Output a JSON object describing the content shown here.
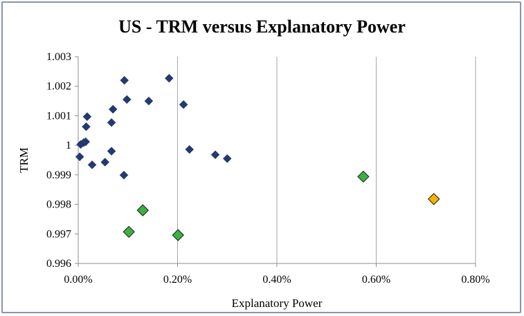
{
  "chart_data": {
    "type": "scatter",
    "title": "US - TRM versus Explanatory  Power",
    "xlabel": "Explanatory Power",
    "ylabel": "TRM",
    "xlim": [
      0,
      0.008
    ],
    "ylim": [
      0.996,
      1.003
    ],
    "x_ticks": [
      0,
      0.002,
      0.004,
      0.006,
      0.008
    ],
    "x_tick_labels": [
      "0.00%",
      "0.20%",
      "0.40%",
      "0.60%",
      "0.80%"
    ],
    "y_ticks": [
      0.996,
      0.997,
      0.998,
      0.999,
      1,
      1.001,
      1.002,
      1.003
    ],
    "y_tick_labels": [
      "0.996",
      "0.997",
      "0.998",
      "0.999",
      "1",
      "1.001",
      "1.002",
      "1.003"
    ],
    "grid": "vertical",
    "legend": "none",
    "series": [
      {
        "color": "#243a6e",
        "marker": "diamond-small",
        "points": [
          [
            0.00093,
            1.0022
          ],
          [
            0.00183,
            1.00227
          ],
          [
            0.00098,
            1.00155
          ],
          [
            0.00142,
            1.0015
          ],
          [
            0.00212,
            1.00138
          ],
          [
            0.0007,
            1.00122
          ],
          [
            0.00018,
            1.00097
          ],
          [
            0.00067,
            1.00077
          ],
          [
            0.00016,
            1.00063
          ],
          [
            5e-05,
            1.00003
          ],
          [
            0.00011,
            1.00009
          ],
          [
            0.00015,
            1.00012
          ],
          [
            0.00067,
            0.9998
          ],
          [
            0.00224,
            0.99986
          ],
          [
            0.00276,
            0.99968
          ],
          [
            0.003,
            0.99955
          ],
          [
            3e-05,
            0.99961
          ],
          [
            0.00028,
            0.99934
          ],
          [
            0.00054,
            0.99943
          ],
          [
            0.00092,
            0.99899
          ]
        ]
      },
      {
        "color": "#3cb043",
        "marker": "diamond-large",
        "points": [
          [
            0.0013,
            0.9978
          ],
          [
            0.00102,
            0.99707
          ],
          [
            0.00201,
            0.99696
          ],
          [
            0.00574,
            0.99894
          ]
        ]
      },
      {
        "color": "#f5b400",
        "marker": "diamond-large",
        "points": [
          [
            0.00716,
            0.99818
          ]
        ]
      }
    ]
  }
}
